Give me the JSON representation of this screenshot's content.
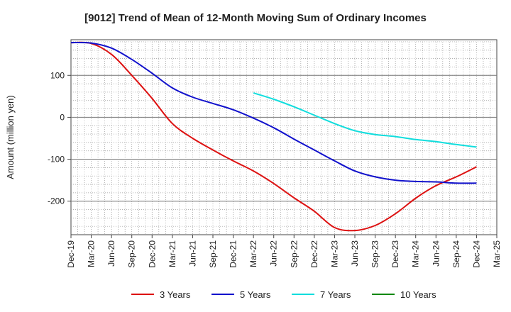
{
  "chart_data": {
    "type": "line",
    "title": "[9012]  Trend of Mean of 12-Month Moving Sum of Ordinary Incomes",
    "xlabel": "",
    "ylabel": "Amount (million yen)",
    "ylim": [
      -280,
      185
    ],
    "yticks": [
      100,
      0,
      -100,
      -200
    ],
    "ytick_labels": [
      "100",
      "0",
      "-100",
      "-200"
    ],
    "grid": true,
    "legend_position": "bottom",
    "categories": [
      "Dec-19",
      "Mar-20",
      "Jun-20",
      "Sep-20",
      "Dec-20",
      "Mar-21",
      "Jun-21",
      "Sep-21",
      "Dec-21",
      "Mar-22",
      "Jun-22",
      "Sep-22",
      "Dec-22",
      "Mar-23",
      "Jun-23",
      "Sep-23",
      "Dec-23",
      "Mar-24",
      "Jun-24",
      "Sep-24",
      "Dec-24",
      "Mar-25"
    ],
    "series": [
      {
        "name": "3 Years",
        "color": "#dd1111",
        "values": [
          178,
          176,
          150,
          100,
          45,
          -15,
          -50,
          -78,
          -104,
          -128,
          -158,
          -192,
          -224,
          -263,
          -270,
          -258,
          -230,
          -193,
          -163,
          -142,
          -118,
          null
        ]
      },
      {
        "name": "5 Years",
        "color": "#1111cc",
        "values": [
          178,
          177,
          165,
          138,
          105,
          70,
          48,
          33,
          18,
          -2,
          -25,
          -52,
          -78,
          -104,
          -128,
          -142,
          -150,
          -153,
          -154,
          -157,
          -157,
          null
        ]
      },
      {
        "name": "7 Years",
        "color": "#11dddd",
        "values": [
          null,
          null,
          null,
          null,
          null,
          null,
          null,
          null,
          null,
          58,
          43,
          25,
          5,
          -15,
          -32,
          -41,
          -46,
          -53,
          -58,
          -65,
          -71,
          null
        ]
      },
      {
        "name": "10 Years",
        "color": "#118811",
        "values": [
          null,
          null,
          null,
          null,
          null,
          null,
          null,
          null,
          null,
          null,
          null,
          null,
          null,
          null,
          null,
          null,
          null,
          null,
          null,
          null,
          null,
          null
        ]
      }
    ]
  }
}
